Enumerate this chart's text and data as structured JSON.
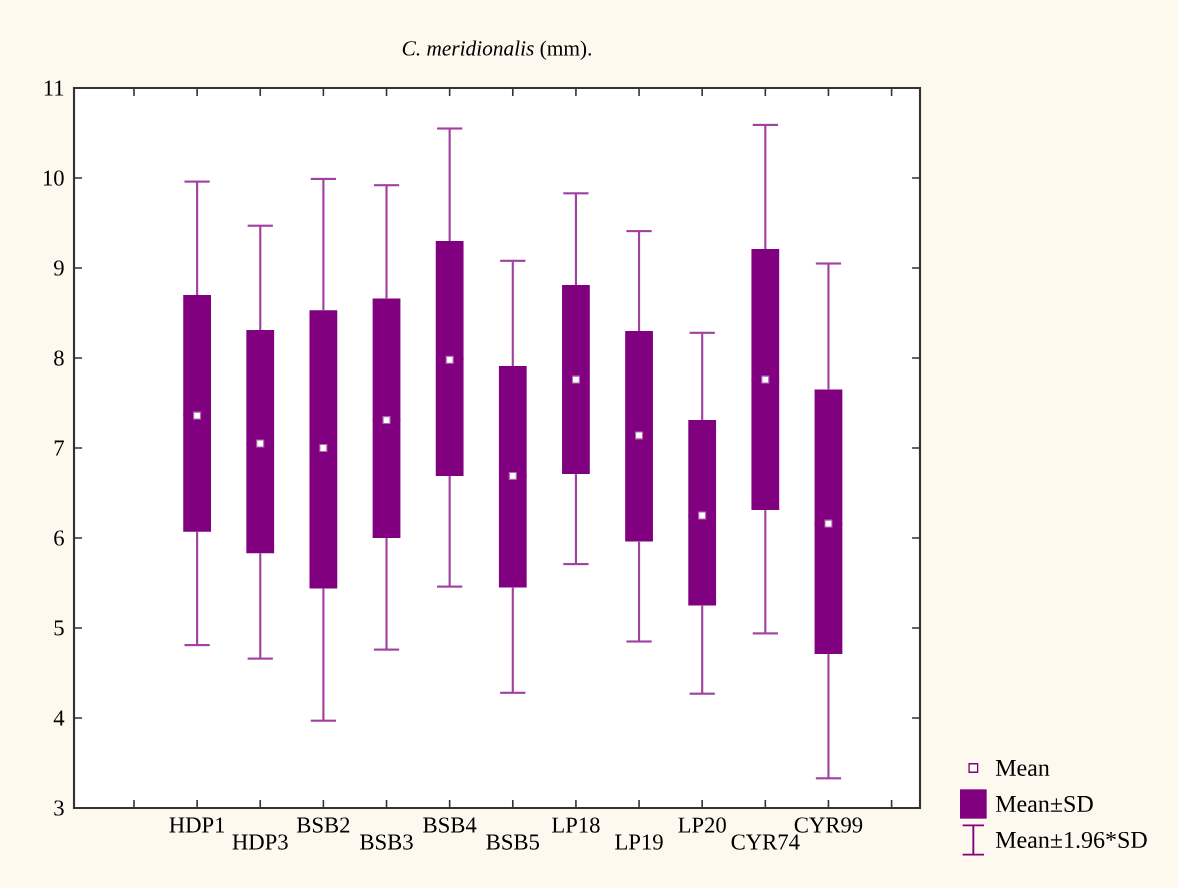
{
  "chart_data": {
    "type": "box",
    "title": "*C. meridionalis* (mm).",
    "categories": [
      null,
      "HDP1",
      "HDP3",
      "BSB2",
      "BSB3",
      "BSB4",
      "BSB5",
      "LP18",
      "LP19",
      "LP20",
      "CYR74",
      "CYR99",
      null
    ],
    "boxes": [
      null,
      {
        "low": 4.81,
        "q1": 6.07,
        "median": 7.36,
        "q3": 8.7,
        "high": 9.96,
        "mean": 7.36
      },
      {
        "low": 4.66,
        "q1": 5.83,
        "median": 7.05,
        "q3": 8.31,
        "high": 9.47,
        "mean": 7.05
      },
      {
        "low": 3.97,
        "q1": 5.44,
        "median": 7.0,
        "q3": 8.53,
        "high": 9.99,
        "mean": 7.0
      },
      {
        "low": 4.76,
        "q1": 6.0,
        "median": 7.31,
        "q3": 8.66,
        "high": 9.92,
        "mean": 7.31
      },
      {
        "low": 5.46,
        "q1": 6.69,
        "median": 7.98,
        "q3": 9.3,
        "high": 10.55,
        "mean": 7.98
      },
      {
        "low": 4.28,
        "q1": 5.45,
        "median": 6.69,
        "q3": 7.91,
        "high": 9.08,
        "mean": 6.69
      },
      {
        "low": 5.71,
        "q1": 6.71,
        "median": 7.76,
        "q3": 8.81,
        "high": 9.83,
        "mean": 7.76
      },
      {
        "low": 4.85,
        "q1": 5.96,
        "median": 7.14,
        "q3": 8.3,
        "high": 9.41,
        "mean": 7.14
      },
      {
        "low": 4.27,
        "q1": 5.25,
        "median": 6.25,
        "q3": 7.31,
        "high": 8.28,
        "mean": 6.25
      },
      {
        "low": 4.94,
        "q1": 6.31,
        "median": 7.76,
        "q3": 9.21,
        "high": 10.59,
        "mean": 7.76
      },
      {
        "low": 3.33,
        "q1": 4.71,
        "median": 6.16,
        "q3": 7.65,
        "high": 9.05,
        "mean": 6.16
      },
      null
    ],
    "color": "#800080",
    "ylim": [
      3,
      11
    ],
    "yticks": [
      3,
      4,
      5,
      6,
      7,
      8,
      9,
      10,
      11
    ],
    "annotations": [
      "Mean",
      "Mean±SD",
      "Mean±1.96*SD"
    ]
  }
}
